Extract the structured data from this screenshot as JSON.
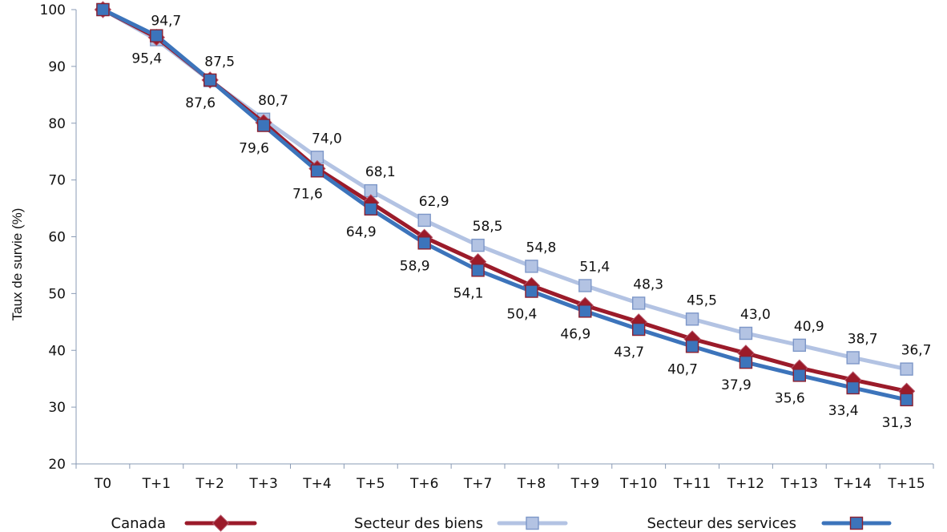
{
  "chart_data": {
    "type": "line",
    "title": "",
    "xlabel": "",
    "ylabel": "Taux de survie (%)",
    "ylim": [
      20,
      100
    ],
    "yticks": [
      20,
      30,
      40,
      50,
      60,
      70,
      80,
      90,
      100
    ],
    "grid": false,
    "legend_position": "bottom",
    "categories": [
      "T0",
      "T+1",
      "T+2",
      "T+3",
      "T+4",
      "T+5",
      "T+6",
      "T+7",
      "T+8",
      "T+9",
      "T+10",
      "T+11",
      "T+12",
      "T+13",
      "T+14",
      "T+15"
    ],
    "series": [
      {
        "name": "Canada",
        "color": "#9b1b2a",
        "marker": "diamond",
        "values": [
          100,
          95.1,
          87.6,
          80.1,
          72.0,
          66.0,
          59.9,
          55.6,
          51.4,
          47.9,
          45.0,
          42.0,
          39.5,
          36.9,
          34.8,
          32.8
        ]
      },
      {
        "name": "Secteur des biens",
        "color": "#b3c3e3",
        "marker": "square",
        "values": [
          100,
          94.7,
          87.5,
          80.7,
          74.0,
          68.1,
          62.9,
          58.5,
          54.8,
          51.4,
          48.3,
          45.5,
          43.0,
          40.9,
          38.7,
          36.7
        ]
      },
      {
        "name": "Secteur des services",
        "color": "#3c74bb",
        "marker": "square",
        "values": [
          100,
          95.4,
          87.6,
          79.6,
          71.6,
          64.9,
          58.9,
          54.1,
          50.4,
          46.9,
          43.7,
          40.7,
          37.9,
          35.6,
          33.4,
          31.3
        ]
      }
    ],
    "data_labels": {
      "above": [
        "",
        "94,7",
        "87,5",
        "80,7",
        "74,0",
        "68,1",
        "62,9",
        "58,5",
        "54,8",
        "51,4",
        "48,3",
        "45,5",
        "43,0",
        "40,9",
        "38,7",
        "36,7"
      ],
      "below": [
        "",
        "95,4",
        "87,6",
        "79,6",
        "71,6",
        "64,9",
        "58,9",
        "54,1",
        "50,4",
        "46,9",
        "43,7",
        "40,7",
        "37,9",
        "35,6",
        "33,4",
        "31,3"
      ]
    }
  }
}
